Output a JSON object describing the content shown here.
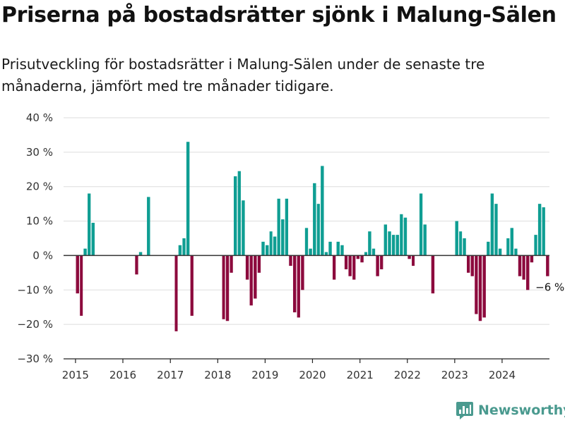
{
  "title": "Priserna på bostadsrätter sjönk i Malung-Sälen",
  "subtitle": "Prisutveckling för bostadsrätter i Malung-Sälen under de senaste tre månaderna, jämfört med tre månader tidigare.",
  "brand": {
    "name": "Newsworthy",
    "icon": "bar-chart-logo-icon",
    "color": "#4a9a8f"
  },
  "colors": {
    "positive": "#0f9e93",
    "negative": "#8c0a3d",
    "zero_line": "#333333",
    "grid": "#dddddd"
  },
  "chart_data": {
    "type": "bar",
    "ylim": [
      -30,
      40
    ],
    "yticks": [
      40,
      30,
      20,
      10,
      0,
      -10,
      -20,
      -30
    ],
    "ytick_labels": [
      "40 %",
      "30 %",
      "20 %",
      "10 %",
      "0 %",
      "−10 %",
      "−20 %",
      "−30 %"
    ],
    "xticks": [
      "2015",
      "2016",
      "2017",
      "2018",
      "2019",
      "2020",
      "2021",
      "2022",
      "2023",
      "2024"
    ],
    "xlim": [
      "2014-10-01",
      "2024-12-31"
    ],
    "grid": true,
    "series": [
      {
        "values": [
          {
            "date": "2015-01",
            "value": -11
          },
          {
            "date": "2015-02",
            "value": -17.5
          },
          {
            "date": "2015-03",
            "value": 2
          },
          {
            "date": "2015-04",
            "value": 18
          },
          {
            "date": "2015-05",
            "value": 9.5
          },
          {
            "date": "2016-04",
            "value": -5.5
          },
          {
            "date": "2016-05",
            "value": 1
          },
          {
            "date": "2016-07",
            "value": 17
          },
          {
            "date": "2017-02",
            "value": -22
          },
          {
            "date": "2017-03",
            "value": 3
          },
          {
            "date": "2017-04",
            "value": 5
          },
          {
            "date": "2017-05",
            "value": 33
          },
          {
            "date": "2017-06",
            "value": -17.5
          },
          {
            "date": "2018-02",
            "value": -18.5
          },
          {
            "date": "2018-03",
            "value": -19
          },
          {
            "date": "2018-04",
            "value": -5
          },
          {
            "date": "2018-05",
            "value": 23
          },
          {
            "date": "2018-06",
            "value": 24.5
          },
          {
            "date": "2018-07",
            "value": 16
          },
          {
            "date": "2018-08",
            "value": -7
          },
          {
            "date": "2018-09",
            "value": -14.5
          },
          {
            "date": "2018-10",
            "value": -12.5
          },
          {
            "date": "2018-11",
            "value": -5
          },
          {
            "date": "2018-12",
            "value": 4
          },
          {
            "date": "2019-01",
            "value": 3
          },
          {
            "date": "2019-02",
            "value": 7
          },
          {
            "date": "2019-03",
            "value": 5.5
          },
          {
            "date": "2019-04",
            "value": 16.5
          },
          {
            "date": "2019-05",
            "value": 10.5
          },
          {
            "date": "2019-06",
            "value": 16.5
          },
          {
            "date": "2019-07",
            "value": -3
          },
          {
            "date": "2019-08",
            "value": -16.5
          },
          {
            "date": "2019-09",
            "value": -18
          },
          {
            "date": "2019-10",
            "value": -10
          },
          {
            "date": "2019-11",
            "value": 8
          },
          {
            "date": "2019-12",
            "value": 2
          },
          {
            "date": "2020-01",
            "value": 21
          },
          {
            "date": "2020-02",
            "value": 15
          },
          {
            "date": "2020-03",
            "value": 26
          },
          {
            "date": "2020-04",
            "value": 1
          },
          {
            "date": "2020-05",
            "value": 4
          },
          {
            "date": "2020-06",
            "value": -7
          },
          {
            "date": "2020-07",
            "value": 4
          },
          {
            "date": "2020-08",
            "value": 3
          },
          {
            "date": "2020-09",
            "value": -4
          },
          {
            "date": "2020-10",
            "value": -6
          },
          {
            "date": "2020-11",
            "value": -7
          },
          {
            "date": "2020-12",
            "value": -1
          },
          {
            "date": "2021-01",
            "value": -2
          },
          {
            "date": "2021-02",
            "value": 1
          },
          {
            "date": "2021-03",
            "value": 7
          },
          {
            "date": "2021-04",
            "value": 2
          },
          {
            "date": "2021-05",
            "value": -6
          },
          {
            "date": "2021-06",
            "value": -4
          },
          {
            "date": "2021-07",
            "value": 9
          },
          {
            "date": "2021-08",
            "value": 7
          },
          {
            "date": "2021-09",
            "value": 6
          },
          {
            "date": "2021-10",
            "value": 6
          },
          {
            "date": "2021-11",
            "value": 12
          },
          {
            "date": "2021-12",
            "value": 11
          },
          {
            "date": "2022-01",
            "value": -1
          },
          {
            "date": "2022-02",
            "value": -3
          },
          {
            "date": "2022-04",
            "value": 18
          },
          {
            "date": "2022-05",
            "value": 9
          },
          {
            "date": "2022-07",
            "value": -11
          },
          {
            "date": "2023-01",
            "value": 10
          },
          {
            "date": "2023-02",
            "value": 7
          },
          {
            "date": "2023-03",
            "value": 5
          },
          {
            "date": "2023-04",
            "value": -5
          },
          {
            "date": "2023-05",
            "value": -6
          },
          {
            "date": "2023-06",
            "value": -17
          },
          {
            "date": "2023-07",
            "value": -19
          },
          {
            "date": "2023-08",
            "value": -18
          },
          {
            "date": "2023-09",
            "value": 4
          },
          {
            "date": "2023-10",
            "value": 18
          },
          {
            "date": "2023-11",
            "value": 15
          },
          {
            "date": "2023-12",
            "value": 2
          },
          {
            "date": "2024-02",
            "value": 5
          },
          {
            "date": "2024-03",
            "value": 8
          },
          {
            "date": "2024-04",
            "value": 2
          },
          {
            "date": "2024-05",
            "value": -6
          },
          {
            "date": "2024-06",
            "value": -7
          },
          {
            "date": "2024-07",
            "value": -10
          },
          {
            "date": "2024-08",
            "value": -2
          },
          {
            "date": "2024-09",
            "value": 6
          },
          {
            "date": "2024-10",
            "value": 15
          },
          {
            "date": "2024-11",
            "value": 14
          },
          {
            "date": "2024-12",
            "value": -6
          }
        ]
      }
    ],
    "annotation": {
      "text": "−6 %",
      "date": "2024-12",
      "value": -6
    }
  }
}
